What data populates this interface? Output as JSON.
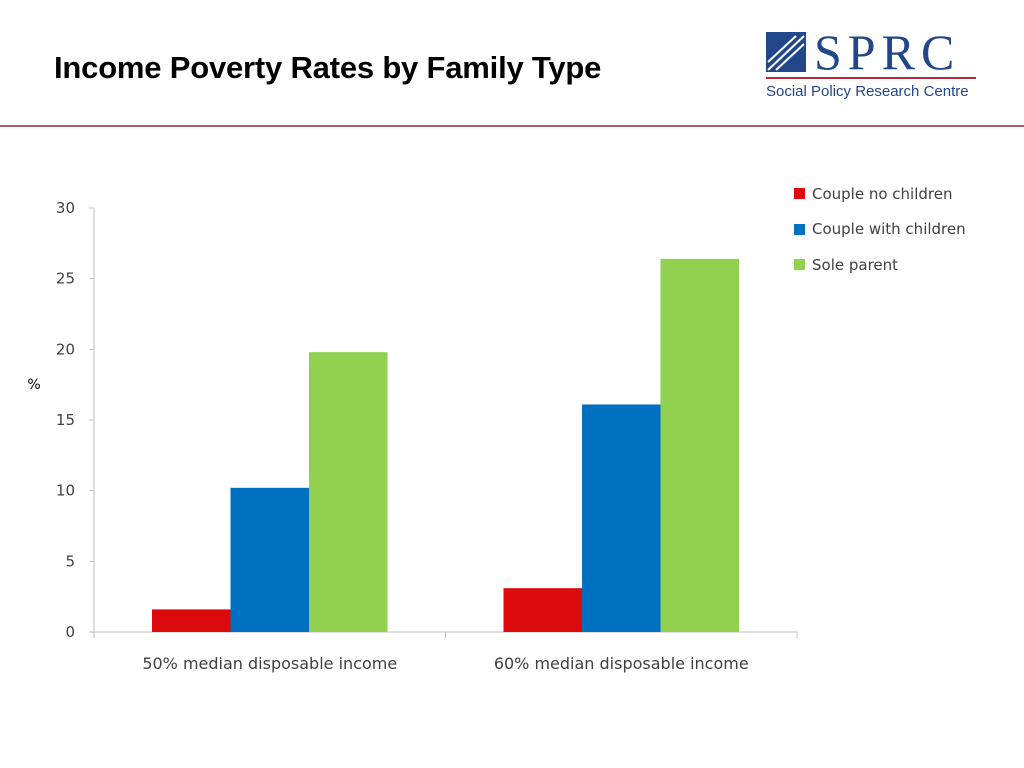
{
  "slide": {
    "title": "Income Poverty Rates by Family Type"
  },
  "logo": {
    "wordmark": "SPRC",
    "subtitle": "Social Policy Research Centre",
    "color": "#21468a",
    "accent": "#b42a3a"
  },
  "chart_data": {
    "type": "bar",
    "categories": [
      "50% median disposable income",
      "60% median disposable income"
    ],
    "series": [
      {
        "name": "Couple no children",
        "values": [
          1.6,
          3.1
        ],
        "color": "#dc0a0a"
      },
      {
        "name": "Couple with children",
        "values": [
          10.2,
          16.1
        ],
        "color": "#0070c0"
      },
      {
        "name": "Sole parent",
        "values": [
          19.8,
          26.4
        ],
        "color": "#92d050"
      }
    ],
    "title": "",
    "xlabel": "",
    "ylabel": "%",
    "ylim": [
      0,
      30
    ],
    "yticks": [
      0,
      5,
      10,
      15,
      20,
      25,
      30
    ],
    "grid": false,
    "legend": "top-right"
  }
}
